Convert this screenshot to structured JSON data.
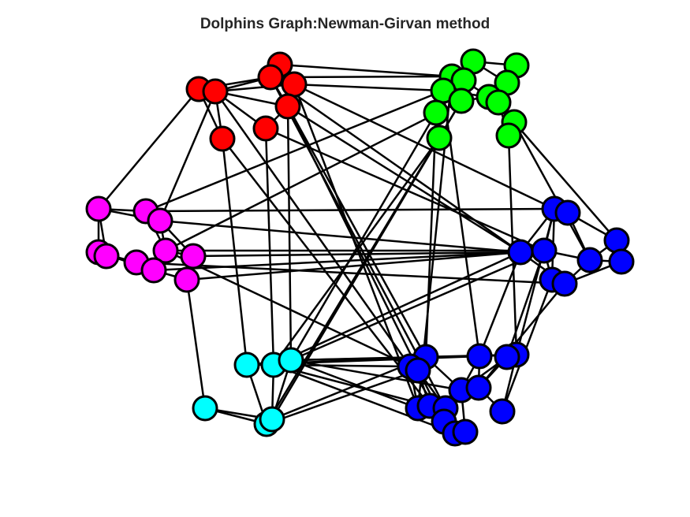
{
  "title": "Dolphins Graph:Newman-Girvan method",
  "community_colors": {
    "red": "#ff0000",
    "green": "#00ff00",
    "magenta": "#ff00ff",
    "blue": "#0000ff",
    "cyan": "#00ffff"
  },
  "edge_color": "#000000",
  "node_stroke": "#000000"
}
